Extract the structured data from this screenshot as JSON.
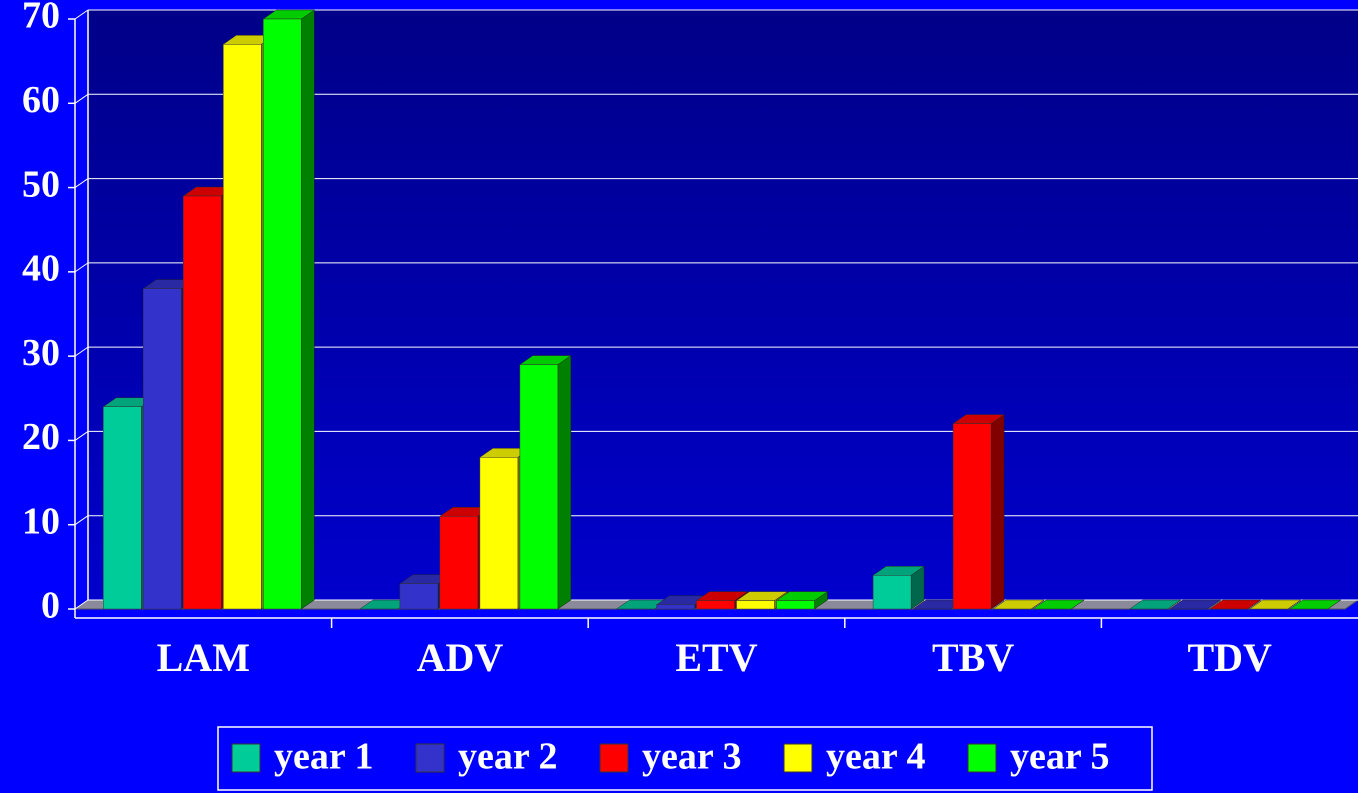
{
  "chart_data": {
    "type": "bar3d",
    "categories": [
      "LAM",
      "ADV",
      "ETV",
      "TBV",
      "TDV"
    ],
    "series": [
      {
        "name": "year 1",
        "color": "#00cc99",
        "values": [
          24,
          0,
          0,
          4,
          0
        ]
      },
      {
        "name": "year 2",
        "color": "#3333cc",
        "values": [
          38,
          3,
          0.5,
          0,
          0
        ]
      },
      {
        "name": "year 3",
        "color": "#ff0000",
        "values": [
          49,
          11,
          1,
          22,
          0
        ]
      },
      {
        "name": "year 4",
        "color": "#ffff00",
        "values": [
          67,
          18,
          1,
          0,
          0
        ]
      },
      {
        "name": "year 5",
        "color": "#00ff00",
        "values": [
          70,
          29,
          1,
          0,
          0
        ]
      }
    ],
    "ylim": [
      0,
      70
    ],
    "yticks": [
      0,
      10,
      20,
      30,
      40,
      50,
      60,
      70
    ],
    "grid": true,
    "legend": "bottom"
  }
}
